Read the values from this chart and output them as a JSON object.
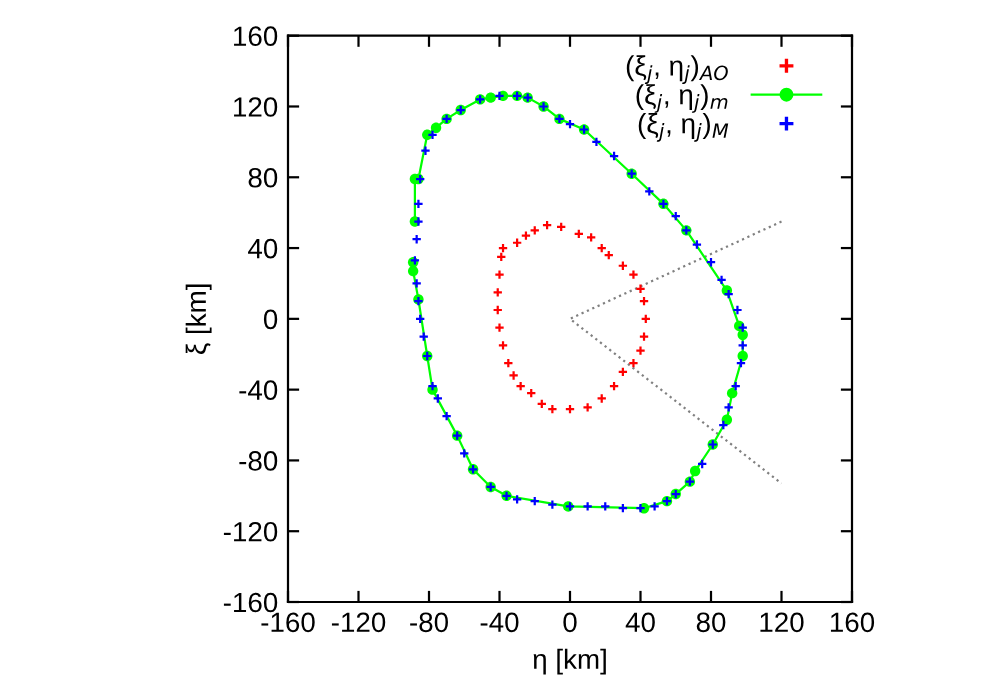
{
  "chart_data": {
    "type": "scatter",
    "xlabel": "η [km]",
    "ylabel": "ξ [km]",
    "xlim": [
      -160,
      160
    ],
    "ylim": [
      -160,
      160
    ],
    "xticks": [
      -160,
      -120,
      -80,
      -40,
      0,
      40,
      80,
      120,
      160
    ],
    "yticks": [
      -160,
      -120,
      -80,
      -40,
      0,
      40,
      80,
      120,
      160
    ],
    "grid": false,
    "legend": "top right",
    "series": [
      {
        "type": "line",
        "color": "#808080",
        "line_style": "dotted",
        "marker": "none",
        "x": [
          120,
          0,
          120
        ],
        "values": [
          55,
          0,
          -93
        ]
      },
      {
        "name": "(ξ$_{j}$, η$_{j}$)$_{AO}$",
        "color": "#ff0000",
        "marker": "cross",
        "x": [
          -13,
          -5,
          5,
          12,
          18,
          22,
          30,
          36,
          40,
          42,
          43,
          42,
          40,
          36,
          30,
          25,
          18,
          10,
          0,
          -10,
          -16,
          -22,
          -28,
          -32,
          -35,
          -38,
          -40,
          -41,
          -41,
          -40,
          -39,
          -38,
          -30,
          -25,
          -20
        ],
        "values": [
          53,
          52,
          48,
          46,
          40,
          36,
          30,
          25,
          17,
          10,
          0,
          -10,
          -18,
          -25,
          -30,
          -38,
          -45,
          -50,
          -51,
          -51,
          -48,
          -42,
          -38,
          -32,
          -25,
          -15,
          -5,
          5,
          15,
          25,
          35,
          40,
          43,
          47,
          50
        ]
      },
      {
        "name": "(ξ$_{j}$, η$_{j}$)$_{m}$",
        "type": "line",
        "color": "#00ff00",
        "marker": "circle",
        "line_style": "solid",
        "x": [
          -88,
          -88,
          -86,
          -81,
          -76,
          -70,
          -62,
          -51,
          -45,
          -38,
          -30,
          -24,
          -15,
          -6,
          8,
          35,
          53,
          66,
          89,
          96,
          98,
          98,
          92,
          89,
          81,
          71,
          68,
          60,
          55,
          42,
          -1,
          -36,
          -45,
          -55,
          -64,
          -78,
          -81,
          -86,
          -89,
          -89
        ],
        "values": [
          55,
          79,
          79,
          104,
          108,
          113,
          118,
          124,
          125,
          126,
          126,
          125,
          120,
          113,
          107,
          82,
          65,
          50,
          16,
          -4,
          -9,
          -21,
          -42,
          -57,
          -71,
          -86,
          -92,
          -99,
          -103,
          -107,
          -106,
          -100,
          -95,
          -85,
          -66,
          -40,
          -21,
          11,
          27,
          32
        ]
      },
      {
        "name": "(ξ$_{j}$, η$_{j}$)$_{M}$",
        "color": "#0000ff",
        "marker": "cross",
        "x": [
          -40,
          -30,
          -24,
          -15,
          -6,
          0,
          8,
          15,
          25,
          35,
          45,
          53,
          60,
          66,
          72,
          80,
          86,
          90,
          95,
          98,
          98,
          97,
          94,
          90,
          87,
          81,
          75,
          68,
          60,
          55,
          48,
          40,
          30,
          20,
          10,
          0,
          -10,
          -20,
          -30,
          -36,
          -45,
          -55,
          -60,
          -64,
          -70,
          -75,
          -78,
          -81,
          -83,
          -85,
          -86,
          -87,
          -88,
          -87,
          -86,
          -86,
          -85,
          -82,
          -78,
          -70,
          -62,
          -51
        ],
        "values": [
          126,
          126,
          125,
          120,
          113,
          110,
          107,
          100,
          92,
          82,
          72,
          65,
          58,
          50,
          42,
          32,
          22,
          14,
          5,
          -5,
          -15,
          -25,
          -38,
          -50,
          -60,
          -71,
          -82,
          -92,
          -99,
          -103,
          -106,
          -107,
          -107,
          -106,
          -106,
          -106,
          -105,
          -103,
          -102,
          -100,
          -95,
          -85,
          -76,
          -66,
          -55,
          -45,
          -38,
          -21,
          -10,
          0,
          10,
          20,
          33,
          45,
          55,
          65,
          79,
          95,
          104,
          113,
          118,
          124
        ]
      }
    ]
  }
}
